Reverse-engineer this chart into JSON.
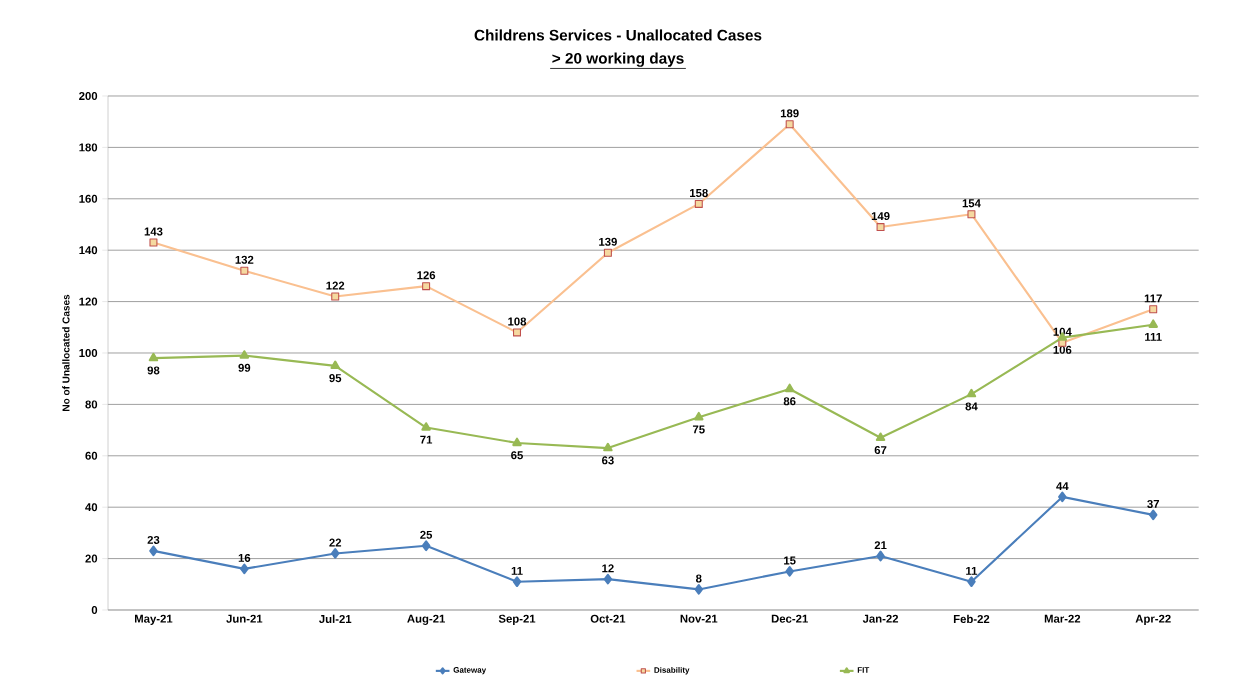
{
  "chart_data": {
    "type": "line",
    "title": "Childrens Services - Unallocated Cases",
    "subtitle": "> 20 working days",
    "ylabel": "No of Unallocated Cases",
    "categories": [
      "May-21",
      "Jun-21",
      "Jul-21",
      "Aug-21",
      "Sep-21",
      "Oct-21",
      "Nov-21",
      "Dec-21",
      "Jan-22",
      "Feb-22",
      "Mar-22",
      "Apr-22"
    ],
    "series": [
      {
        "name": "Gateway",
        "color": "#4a7ebb",
        "marker": "diamond",
        "values": [
          23,
          16,
          22,
          25,
          11,
          12,
          8,
          15,
          21,
          11,
          44,
          37
        ]
      },
      {
        "name": "Disability",
        "color": "#fac090",
        "marker": "square",
        "values": [
          143,
          132,
          122,
          126,
          108,
          139,
          158,
          189,
          149,
          154,
          104,
          117
        ]
      },
      {
        "name": "FIT",
        "color": "#98b954",
        "marker": "triangle",
        "values": [
          98,
          99,
          95,
          71,
          65,
          63,
          75,
          86,
          67,
          84,
          106,
          111
        ]
      }
    ],
    "ylim": [
      0,
      200
    ],
    "yticks": [
      0,
      20,
      40,
      60,
      80,
      100,
      120,
      140,
      160,
      180,
      200
    ],
    "grid": "y",
    "legend": "bottom",
    "data_labels": true
  }
}
